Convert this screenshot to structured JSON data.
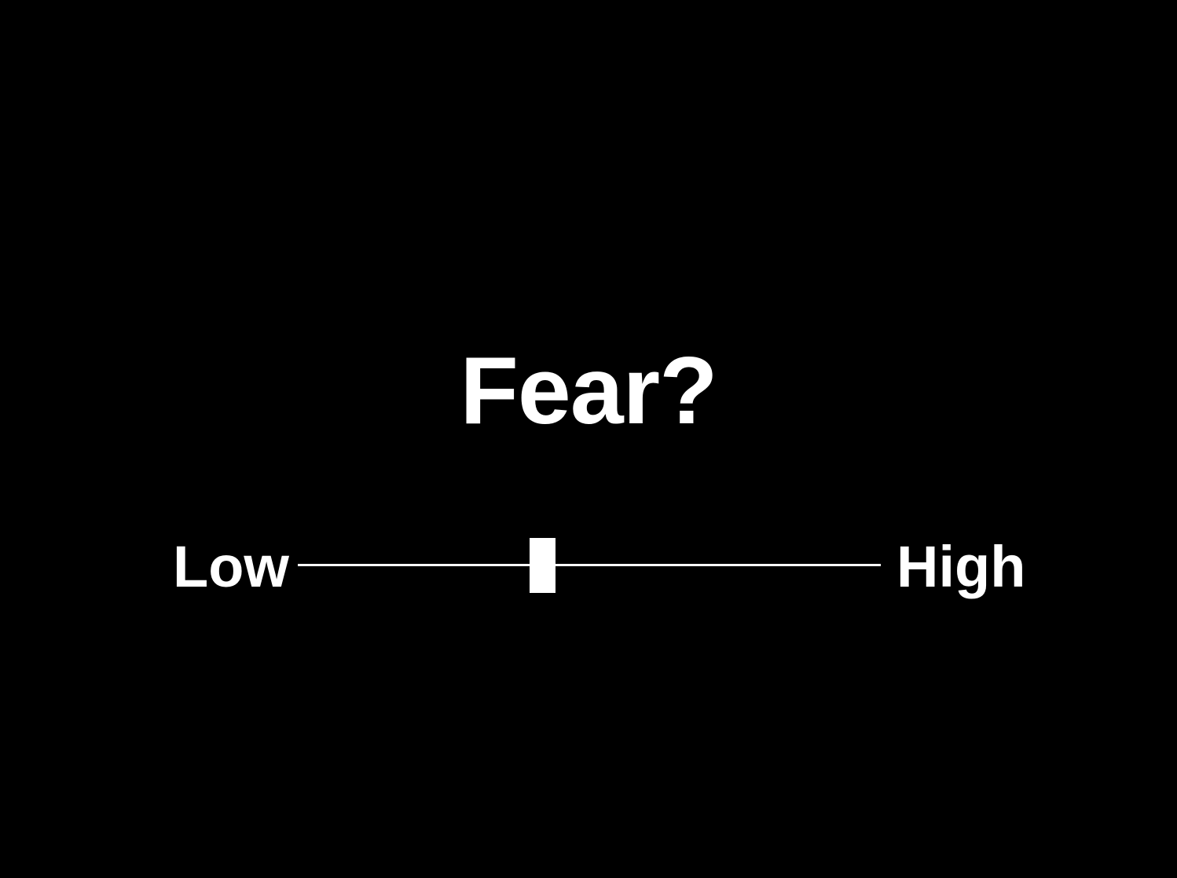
{
  "question": "Fear?",
  "scale": {
    "low_label": "Low",
    "high_label": "High",
    "value": 0.42
  },
  "colors": {
    "background": "#000000",
    "foreground": "#ffffff"
  }
}
